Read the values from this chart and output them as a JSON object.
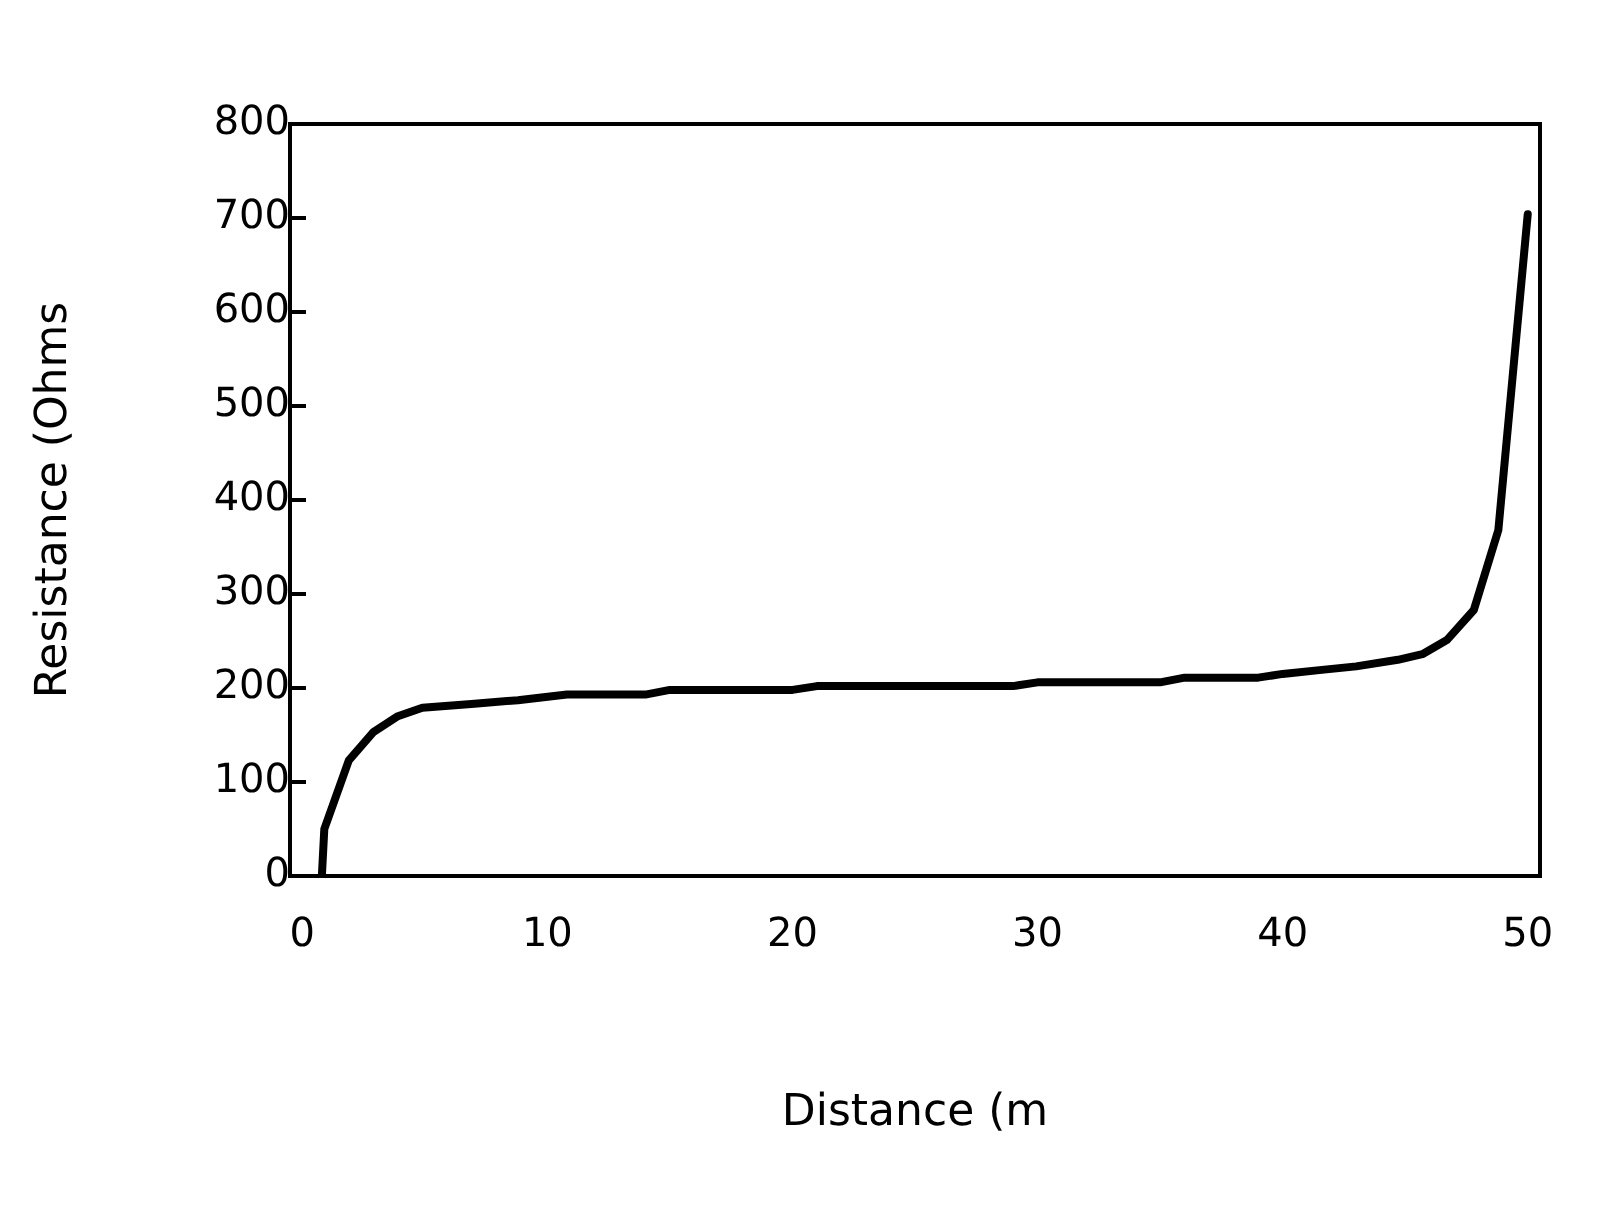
{
  "chart_data": {
    "type": "line",
    "xlabel": "Distance (m",
    "ylabel": "Resistance (Ohms",
    "xlim": [
      -0.5,
      50.5
    ],
    "xticks": [
      0,
      10,
      20,
      30,
      40,
      50
    ],
    "ylim": [
      0,
      800
    ],
    "yticks": [
      0,
      100,
      200,
      300,
      400,
      500,
      600,
      700,
      800
    ],
    "grid": false,
    "legend": false,
    "marker": "none",
    "line_style": "solid",
    "series": [
      {
        "color": "#000000",
        "x": [
          0.8,
          0.9,
          1.9,
          2.9,
          3.9,
          4.9,
          6.9,
          8.8,
          10.8,
          14,
          15,
          20,
          21,
          29,
          30,
          35,
          36,
          39,
          40,
          41.5,
          43,
          44.7,
          45.7,
          46.7,
          47.8,
          48.8,
          50
        ],
        "values": [
          0,
          50,
          123,
          153,
          170,
          179,
          183,
          187,
          193,
          193,
          198,
          198,
          202,
          202,
          206,
          206,
          211,
          211,
          215,
          219,
          223,
          230,
          236,
          251,
          283,
          368,
          704
        ]
      }
    ]
  }
}
